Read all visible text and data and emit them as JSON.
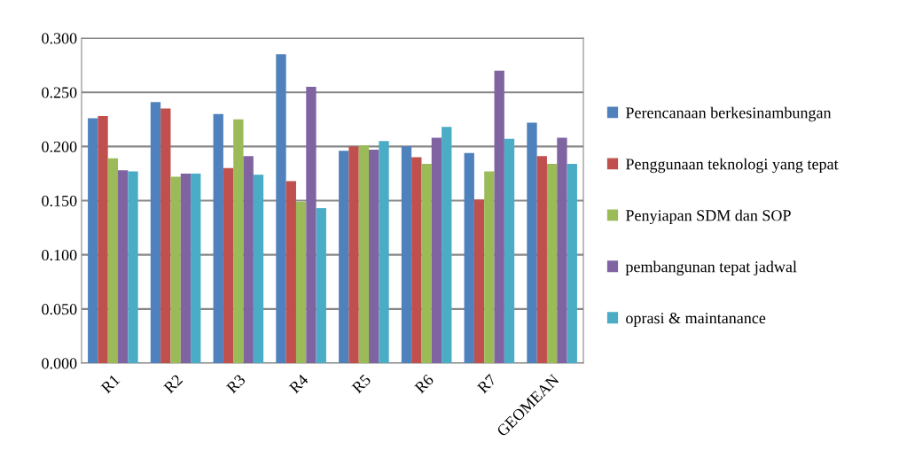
{
  "chart_data": {
    "type": "bar",
    "categories": [
      "R1",
      "R2",
      "R3",
      "R4",
      "R5",
      "R6",
      "R7",
      "GEOMEAN"
    ],
    "series": [
      {
        "name": "Perencanaan berkesinambungan",
        "color": "#4f81bd",
        "values": [
          0.226,
          0.241,
          0.23,
          0.285,
          0.196,
          0.2,
          0.194,
          0.222
        ]
      },
      {
        "name": "Penggunaan teknologi yang tepat",
        "color": "#c0504d",
        "values": [
          0.228,
          0.235,
          0.18,
          0.168,
          0.2,
          0.19,
          0.151,
          0.191
        ]
      },
      {
        "name": "Penyiapan SDM dan SOP",
        "color": "#9bbb59",
        "values": [
          0.189,
          0.172,
          0.225,
          0.149,
          0.201,
          0.184,
          0.177,
          0.184
        ]
      },
      {
        "name": "pembangunan tepat jadwal",
        "color": "#8064a2",
        "values": [
          0.178,
          0.175,
          0.191,
          0.255,
          0.197,
          0.208,
          0.27,
          0.208
        ]
      },
      {
        "name": "oprasi & maintanance",
        "color": "#4bacc6",
        "values": [
          0.177,
          0.175,
          0.174,
          0.143,
          0.205,
          0.218,
          0.207,
          0.184
        ]
      }
    ],
    "ylim": [
      0,
      0.3
    ],
    "yticks": [
      {
        "value": 0,
        "label": "0.000"
      },
      {
        "value": 0.05,
        "label": "0.050"
      },
      {
        "value": 0.1,
        "label": "0.100"
      },
      {
        "value": 0.15,
        "label": "0.150"
      },
      {
        "value": 0.2,
        "label": "0.200"
      },
      {
        "value": 0.25,
        "label": "0.250"
      },
      {
        "value": 0.3,
        "label": "0.300"
      }
    ],
    "grid": "y",
    "legend": "right"
  }
}
